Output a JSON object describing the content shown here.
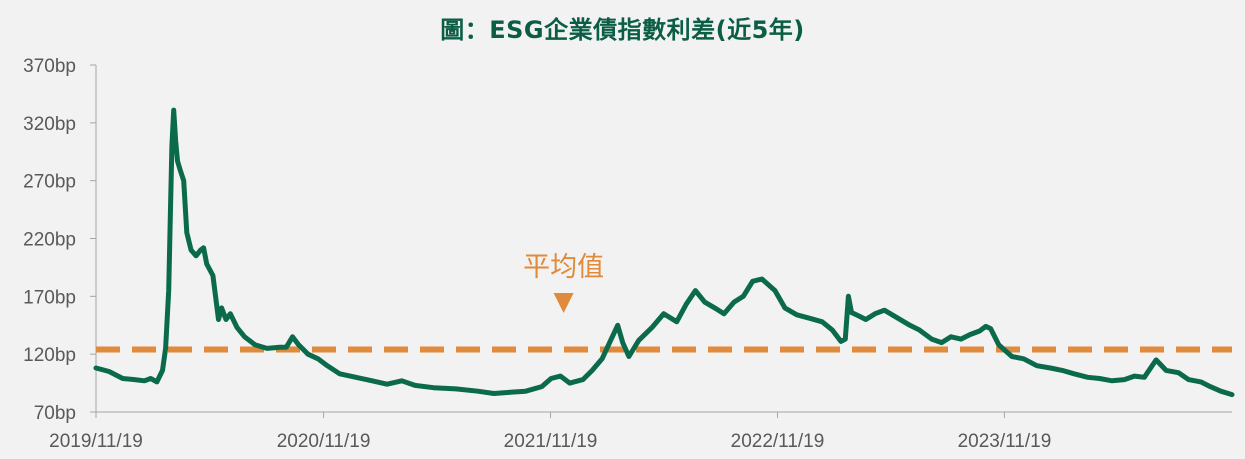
{
  "chart_data": {
    "type": "line",
    "title": "圖：ESG企業債指數利差(近5年)",
    "xlabel": "",
    "ylabel": "",
    "y_unit": "bp",
    "ylim": [
      70,
      370
    ],
    "y_ticks": [
      "370bp",
      "320bp",
      "270bp",
      "220bp",
      "170bp",
      "120bp",
      "70bp"
    ],
    "y_tick_values": [
      370,
      320,
      270,
      220,
      170,
      120,
      70
    ],
    "x_range": [
      "2019-11-19",
      "2024-11-19"
    ],
    "x_ticks": [
      "2019/11/19",
      "2020/11/19",
      "2021/11/19",
      "2022/11/19",
      "2023/11/19"
    ],
    "x_tick_dates": [
      "2019-11-19",
      "2020-11-19",
      "2021-11-19",
      "2022-11-19",
      "2023-11-19"
    ],
    "grid": false,
    "legend": "none",
    "series": [
      {
        "color": "#0b6a4c",
        "points": [
          [
            "2019-11-19",
            108
          ],
          [
            "2019-12-10",
            105
          ],
          [
            "2020-01-01",
            99
          ],
          [
            "2020-01-20",
            98
          ],
          [
            "2020-02-05",
            97
          ],
          [
            "2020-02-15",
            99
          ],
          [
            "2020-02-25",
            96
          ],
          [
            "2020-03-05",
            106
          ],
          [
            "2020-03-10",
            125
          ],
          [
            "2020-03-15",
            175
          ],
          [
            "2020-03-18",
            250
          ],
          [
            "2020-03-20",
            300
          ],
          [
            "2020-03-23",
            331
          ],
          [
            "2020-03-26",
            305
          ],
          [
            "2020-03-29",
            287
          ],
          [
            "2020-04-02",
            280
          ],
          [
            "2020-04-08",
            270
          ],
          [
            "2020-04-13",
            225
          ],
          [
            "2020-04-20",
            210
          ],
          [
            "2020-04-28",
            205
          ],
          [
            "2020-05-05",
            210
          ],
          [
            "2020-05-10",
            212
          ],
          [
            "2020-05-15",
            198
          ],
          [
            "2020-05-25",
            188
          ],
          [
            "2020-06-03",
            150
          ],
          [
            "2020-06-08",
            160
          ],
          [
            "2020-06-15",
            150
          ],
          [
            "2020-06-22",
            155
          ],
          [
            "2020-07-03",
            143
          ],
          [
            "2020-07-15",
            135
          ],
          [
            "2020-08-01",
            128
          ],
          [
            "2020-08-20",
            125
          ],
          [
            "2020-09-10",
            126
          ],
          [
            "2020-09-20",
            126
          ],
          [
            "2020-09-30",
            135
          ],
          [
            "2020-10-10",
            128
          ],
          [
            "2020-10-25",
            120
          ],
          [
            "2020-11-10",
            116
          ],
          [
            "2020-11-25",
            110
          ],
          [
            "2020-12-15",
            103
          ],
          [
            "2021-01-10",
            100
          ],
          [
            "2021-02-05",
            97
          ],
          [
            "2021-03-01",
            94
          ],
          [
            "2021-03-25",
            97
          ],
          [
            "2021-04-15",
            93
          ],
          [
            "2021-05-15",
            91
          ],
          [
            "2021-06-20",
            90
          ],
          [
            "2021-07-25",
            88
          ],
          [
            "2021-08-20",
            86
          ],
          [
            "2021-09-15",
            87
          ],
          [
            "2021-10-10",
            88
          ],
          [
            "2021-11-05",
            92
          ],
          [
            "2021-11-20",
            99
          ],
          [
            "2021-12-05",
            101
          ],
          [
            "2021-12-20",
            95
          ],
          [
            "2022-01-10",
            98
          ],
          [
            "2022-01-25",
            106
          ],
          [
            "2022-02-10",
            116
          ],
          [
            "2022-02-22",
            130
          ],
          [
            "2022-03-07",
            145
          ],
          [
            "2022-03-15",
            130
          ],
          [
            "2022-03-25",
            118
          ],
          [
            "2022-04-10",
            132
          ],
          [
            "2022-05-01",
            143
          ],
          [
            "2022-05-20",
            155
          ],
          [
            "2022-06-10",
            148
          ],
          [
            "2022-06-25",
            163
          ],
          [
            "2022-07-10",
            175
          ],
          [
            "2022-07-25",
            165
          ],
          [
            "2022-08-10",
            160
          ],
          [
            "2022-08-25",
            155
          ],
          [
            "2022-09-10",
            165
          ],
          [
            "2022-09-25",
            170
          ],
          [
            "2022-10-10",
            183
          ],
          [
            "2022-10-25",
            185
          ],
          [
            "2022-11-15",
            175
          ],
          [
            "2022-12-01",
            160
          ],
          [
            "2022-12-20",
            154
          ],
          [
            "2023-01-10",
            151
          ],
          [
            "2023-01-30",
            148
          ],
          [
            "2023-02-15",
            141
          ],
          [
            "2023-03-01",
            131
          ],
          [
            "2023-03-08",
            133
          ],
          [
            "2023-03-13",
            170
          ],
          [
            "2023-03-18",
            156
          ],
          [
            "2023-03-30",
            153
          ],
          [
            "2023-04-10",
            150
          ],
          [
            "2023-04-25",
            155
          ],
          [
            "2023-05-10",
            158
          ],
          [
            "2023-06-01",
            151
          ],
          [
            "2023-06-20",
            145
          ],
          [
            "2023-07-05",
            141
          ],
          [
            "2023-07-25",
            133
          ],
          [
            "2023-08-10",
            130
          ],
          [
            "2023-08-25",
            135
          ],
          [
            "2023-09-10",
            133
          ],
          [
            "2023-09-25",
            137
          ],
          [
            "2023-10-10",
            140
          ],
          [
            "2023-10-20",
            144
          ],
          [
            "2023-10-28",
            142
          ],
          [
            "2023-11-10",
            128
          ],
          [
            "2023-12-01",
            118
          ],
          [
            "2023-12-20",
            116
          ],
          [
            "2024-01-10",
            110
          ],
          [
            "2024-02-01",
            108
          ],
          [
            "2024-02-20",
            106
          ],
          [
            "2024-03-10",
            103
          ],
          [
            "2024-04-01",
            100
          ],
          [
            "2024-04-20",
            99
          ],
          [
            "2024-05-10",
            97
          ],
          [
            "2024-05-30",
            98
          ],
          [
            "2024-06-15",
            101
          ],
          [
            "2024-07-01",
            100
          ],
          [
            "2024-07-20",
            115
          ],
          [
            "2024-08-05",
            106
          ],
          [
            "2024-08-25",
            104
          ],
          [
            "2024-09-10",
            98
          ],
          [
            "2024-09-30",
            96
          ],
          [
            "2024-10-15",
            92
          ],
          [
            "2024-11-01",
            88
          ],
          [
            "2024-11-19",
            85
          ]
        ]
      }
    ],
    "average_line": {
      "value": 124,
      "color": "#e08a3b",
      "label": "平均值"
    }
  }
}
